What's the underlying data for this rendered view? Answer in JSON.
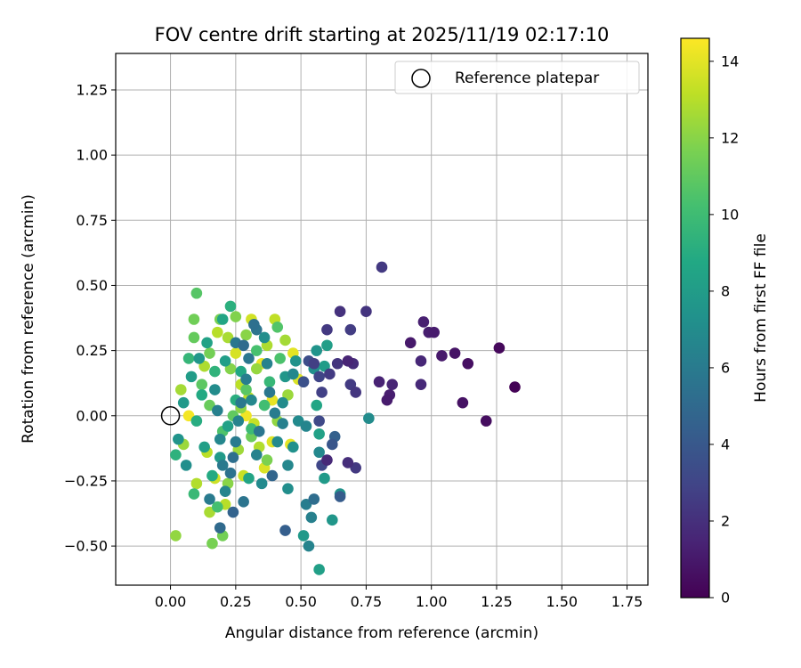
{
  "chart_data": {
    "type": "scatter",
    "title": "FOV centre drift starting at 2025/11/19 02:17:10",
    "xlabel": "Angular distance from reference (arcmin)",
    "ylabel": "Rotation from reference (arcmin)",
    "xlim": [
      -0.21,
      1.83
    ],
    "ylim": [
      -0.65,
      1.39
    ],
    "xticks": [
      0.0,
      0.25,
      0.5,
      0.75,
      1.0,
      1.25,
      1.5,
      1.75
    ],
    "xtick_labels": [
      "0.00",
      "0.25",
      "0.50",
      "0.75",
      "1.00",
      "1.25",
      "1.50",
      "1.75"
    ],
    "yticks": [
      -0.5,
      -0.25,
      0.0,
      0.25,
      0.5,
      0.75,
      1.0,
      1.25
    ],
    "ytick_labels": [
      "−0.50",
      "−0.25",
      "0.00",
      "0.25",
      "0.50",
      "0.75",
      "1.00",
      "1.25"
    ],
    "grid": true,
    "legend": {
      "label": "Reference platepar",
      "placement": "top-right"
    },
    "reference_point": {
      "x": 0.0,
      "y": 0.0
    },
    "colorbar": {
      "label": "Hours from first FF file",
      "range": [
        0,
        14.6
      ],
      "ticks": [
        0,
        2,
        4,
        6,
        8,
        10,
        12,
        14
      ],
      "tick_labels": [
        "0",
        "2",
        "4",
        "6",
        "8",
        "10",
        "12",
        "14"
      ],
      "colormap": "viridis"
    },
    "points": [
      {
        "x": 1.32,
        "y": 0.11,
        "t": 0.1
      },
      {
        "x": 1.26,
        "y": 0.26,
        "t": 0.3
      },
      {
        "x": 1.21,
        "y": -0.02,
        "t": 0.5
      },
      {
        "x": 1.14,
        "y": 0.2,
        "t": 0.6
      },
      {
        "x": 1.12,
        "y": 0.05,
        "t": 0.7
      },
      {
        "x": 1.09,
        "y": 0.24,
        "t": 0.8
      },
      {
        "x": 1.04,
        "y": 0.23,
        "t": 1.0
      },
      {
        "x": 1.01,
        "y": 0.32,
        "t": 1.1
      },
      {
        "x": 0.99,
        "y": 0.32,
        "t": 1.2
      },
      {
        "x": 0.97,
        "y": 0.36,
        "t": 1.3
      },
      {
        "x": 0.92,
        "y": 0.28,
        "t": 1.0
      },
      {
        "x": 0.96,
        "y": 0.21,
        "t": 1.6
      },
      {
        "x": 0.96,
        "y": 0.12,
        "t": 1.7
      },
      {
        "x": 0.84,
        "y": 0.08,
        "t": 1.2
      },
      {
        "x": 0.83,
        "y": 0.06,
        "t": 1.1
      },
      {
        "x": 0.85,
        "y": 0.12,
        "t": 1.5
      },
      {
        "x": 0.81,
        "y": 0.57,
        "t": 2.4
      },
      {
        "x": 0.8,
        "y": 0.13,
        "t": 1.4
      },
      {
        "x": 0.75,
        "y": 0.4,
        "t": 2.2
      },
      {
        "x": 0.71,
        "y": -0.2,
        "t": 2.4
      },
      {
        "x": 0.71,
        "y": 0.09,
        "t": 2.3
      },
      {
        "x": 0.7,
        "y": 0.2,
        "t": 1.8
      },
      {
        "x": 0.69,
        "y": 0.12,
        "t": 2.5
      },
      {
        "x": 0.68,
        "y": -0.18,
        "t": 1.9
      },
      {
        "x": 0.69,
        "y": 0.33,
        "t": 2.6
      },
      {
        "x": 0.68,
        "y": 0.21,
        "t": 1.5
      },
      {
        "x": 0.65,
        "y": 0.4,
        "t": 2.1
      },
      {
        "x": 0.64,
        "y": 0.2,
        "t": 2.2
      },
      {
        "x": 0.61,
        "y": 0.16,
        "t": 2.5
      },
      {
        "x": 0.6,
        "y": 0.33,
        "t": 2.4
      },
      {
        "x": 0.6,
        "y": -0.17,
        "t": 1.7
      },
      {
        "x": 0.58,
        "y": 0.09,
        "t": 2.8
      },
      {
        "x": 0.57,
        "y": 0.15,
        "t": 3.0
      },
      {
        "x": 0.58,
        "y": -0.19,
        "t": 3.1
      },
      {
        "x": 0.57,
        "y": -0.02,
        "t": 3.2
      },
      {
        "x": 0.55,
        "y": 0.2,
        "t": 2.7
      },
      {
        "x": 0.53,
        "y": 0.21,
        "t": 3.4
      },
      {
        "x": 0.62,
        "y": -0.11,
        "t": 3.9
      },
      {
        "x": 0.63,
        "y": -0.08,
        "t": 4.5
      },
      {
        "x": 0.51,
        "y": 0.13,
        "t": 3.6
      },
      {
        "x": 0.65,
        "y": -0.31,
        "t": 4.2
      },
      {
        "x": 0.55,
        "y": -0.32,
        "t": 5.2
      },
      {
        "x": 0.44,
        "y": -0.44,
        "t": 4.4
      },
      {
        "x": 0.24,
        "y": -0.37,
        "t": 4.6
      },
      {
        "x": 0.19,
        "y": -0.43,
        "t": 5.0
      },
      {
        "x": 0.52,
        "y": -0.34,
        "t": 6.1
      },
      {
        "x": 0.54,
        "y": -0.39,
        "t": 6.3
      },
      {
        "x": 0.53,
        "y": -0.5,
        "t": 6.5
      },
      {
        "x": 0.51,
        "y": -0.46,
        "t": 7.8
      },
      {
        "x": 0.57,
        "y": -0.59,
        "t": 8.2
      },
      {
        "x": 0.62,
        "y": -0.4,
        "t": 7.6
      },
      {
        "x": 0.65,
        "y": -0.3,
        "t": 7.4
      },
      {
        "x": 0.59,
        "y": -0.24,
        "t": 7.9
      },
      {
        "x": 0.57,
        "y": -0.14,
        "t": 6.8
      },
      {
        "x": 0.57,
        "y": -0.07,
        "t": 8.3
      },
      {
        "x": 0.59,
        "y": 0.19,
        "t": 8.0
      },
      {
        "x": 0.6,
        "y": 0.27,
        "t": 8.1
      },
      {
        "x": 0.56,
        "y": 0.25,
        "t": 7.5
      },
      {
        "x": 0.55,
        "y": 0.18,
        "t": 7.2
      },
      {
        "x": 0.56,
        "y": 0.04,
        "t": 8.6
      },
      {
        "x": 0.52,
        "y": -0.04,
        "t": 6.6
      },
      {
        "x": 0.49,
        "y": -0.02,
        "t": 6.9
      },
      {
        "x": 0.47,
        "y": -0.12,
        "t": 7.3
      },
      {
        "x": 0.45,
        "y": -0.19,
        "t": 6.7
      },
      {
        "x": 0.45,
        "y": -0.28,
        "t": 7.1
      },
      {
        "x": 0.39,
        "y": -0.23,
        "t": 4.8
      },
      {
        "x": 0.76,
        "y": -0.01,
        "t": 7.0
      },
      {
        "x": 0.48,
        "y": 0.21,
        "t": 7.4
      },
      {
        "x": 0.47,
        "y": 0.16,
        "t": 6.8
      },
      {
        "x": 0.44,
        "y": 0.15,
        "t": 7.6
      },
      {
        "x": 0.43,
        "y": 0.05,
        "t": 7.0
      },
      {
        "x": 0.43,
        "y": -0.03,
        "t": 6.3
      },
      {
        "x": 0.41,
        "y": -0.1,
        "t": 6.9
      },
      {
        "x": 0.4,
        "y": 0.01,
        "t": 6.1
      },
      {
        "x": 0.38,
        "y": 0.09,
        "t": 5.8
      },
      {
        "x": 0.37,
        "y": 0.2,
        "t": 6.4
      },
      {
        "x": 0.36,
        "y": 0.3,
        "t": 7.1
      },
      {
        "x": 0.33,
        "y": 0.33,
        "t": 5.6
      },
      {
        "x": 0.32,
        "y": 0.35,
        "t": 5.4
      },
      {
        "x": 0.3,
        "y": 0.22,
        "t": 5.7
      },
      {
        "x": 0.29,
        "y": 0.14,
        "t": 6.2
      },
      {
        "x": 0.27,
        "y": 0.05,
        "t": 5.9
      },
      {
        "x": 0.26,
        "y": -0.02,
        "t": 6.5
      },
      {
        "x": 0.25,
        "y": -0.1,
        "t": 6.0
      },
      {
        "x": 0.24,
        "y": -0.16,
        "t": 5.3
      },
      {
        "x": 0.23,
        "y": -0.22,
        "t": 5.5
      },
      {
        "x": 0.21,
        "y": -0.29,
        "t": 6.6
      },
      {
        "x": 0.2,
        "y": -0.19,
        "t": 5.9
      },
      {
        "x": 0.19,
        "y": -0.09,
        "t": 6.7
      },
      {
        "x": 0.18,
        "y": 0.02,
        "t": 6.3
      },
      {
        "x": 0.17,
        "y": 0.1,
        "t": 7.0
      },
      {
        "x": 0.28,
        "y": 0.27,
        "t": 5.1
      },
      {
        "x": 0.25,
        "y": 0.28,
        "t": 5.8
      },
      {
        "x": 0.31,
        "y": 0.06,
        "t": 6.8
      },
      {
        "x": 0.34,
        "y": -0.06,
        "t": 5.7
      },
      {
        "x": 0.33,
        "y": -0.15,
        "t": 6.4
      },
      {
        "x": 0.35,
        "y": -0.26,
        "t": 6.9
      },
      {
        "x": 0.28,
        "y": -0.33,
        "t": 5.6
      },
      {
        "x": 0.15,
        "y": -0.32,
        "t": 6.0
      },
      {
        "x": 0.06,
        "y": -0.19,
        "t": 7.2
      },
      {
        "x": 0.03,
        "y": -0.09,
        "t": 7.5
      },
      {
        "x": 0.05,
        "y": 0.05,
        "t": 7.8
      },
      {
        "x": 0.08,
        "y": 0.15,
        "t": 8.0
      },
      {
        "x": 0.11,
        "y": 0.22,
        "t": 7.7
      },
      {
        "x": 0.14,
        "y": 0.28,
        "t": 8.4
      },
      {
        "x": 0.2,
        "y": 0.37,
        "t": 8.6
      },
      {
        "x": 0.23,
        "y": 0.42,
        "t": 9.2
      },
      {
        "x": 0.12,
        "y": 0.08,
        "t": 8.8
      },
      {
        "x": 0.1,
        "y": -0.02,
        "t": 9.0
      },
      {
        "x": 0.13,
        "y": -0.12,
        "t": 8.2
      },
      {
        "x": 0.16,
        "y": -0.23,
        "t": 8.9
      },
      {
        "x": 0.19,
        "y": -0.16,
        "t": 7.9
      },
      {
        "x": 0.22,
        "y": -0.04,
        "t": 8.3
      },
      {
        "x": 0.25,
        "y": 0.06,
        "t": 9.1
      },
      {
        "x": 0.27,
        "y": 0.17,
        "t": 8.7
      },
      {
        "x": 0.3,
        "y": -0.24,
        "t": 8.5
      },
      {
        "x": 0.21,
        "y": 0.21,
        "t": 8.1
      },
      {
        "x": 0.17,
        "y": 0.17,
        "t": 9.4
      },
      {
        "x": 0.07,
        "y": 0.22,
        "t": 9.6
      },
      {
        "x": 0.02,
        "y": -0.15,
        "t": 9.3
      },
      {
        "x": 0.09,
        "y": -0.3,
        "t": 9.8
      },
      {
        "x": 0.18,
        "y": -0.35,
        "t": 10.2
      },
      {
        "x": 0.31,
        "y": -0.05,
        "t": 9.9
      },
      {
        "x": 0.36,
        "y": 0.04,
        "t": 10.1
      },
      {
        "x": 0.38,
        "y": 0.13,
        "t": 9.7
      },
      {
        "x": 0.42,
        "y": 0.22,
        "t": 10.4
      },
      {
        "x": 0.41,
        "y": 0.34,
        "t": 10.6
      },
      {
        "x": 0.33,
        "y": 0.25,
        "t": 10.3
      },
      {
        "x": 0.29,
        "y": 0.1,
        "t": 10.8
      },
      {
        "x": 0.24,
        "y": 0.0,
        "t": 11.0
      },
      {
        "x": 0.2,
        "y": -0.06,
        "t": 10.5
      },
      {
        "x": 0.15,
        "y": 0.04,
        "t": 11.2
      },
      {
        "x": 0.12,
        "y": 0.12,
        "t": 10.9
      },
      {
        "x": 0.09,
        "y": 0.3,
        "t": 11.1
      },
      {
        "x": 0.1,
        "y": 0.47,
        "t": 10.7
      },
      {
        "x": 0.09,
        "y": 0.37,
        "t": 11.4
      },
      {
        "x": 0.15,
        "y": 0.24,
        "t": 11.5
      },
      {
        "x": 0.19,
        "y": 0.37,
        "t": 11.6
      },
      {
        "x": 0.25,
        "y": 0.38,
        "t": 11.8
      },
      {
        "x": 0.29,
        "y": 0.31,
        "t": 12.0
      },
      {
        "x": 0.23,
        "y": 0.18,
        "t": 11.9
      },
      {
        "x": 0.27,
        "y": 0.03,
        "t": 12.1
      },
      {
        "x": 0.31,
        "y": -0.08,
        "t": 11.3
      },
      {
        "x": 0.37,
        "y": -0.17,
        "t": 11.7
      },
      {
        "x": 0.41,
        "y": -0.02,
        "t": 12.2
      },
      {
        "x": 0.45,
        "y": 0.08,
        "t": 12.4
      },
      {
        "x": 0.44,
        "y": 0.29,
        "t": 12.6
      },
      {
        "x": 0.37,
        "y": 0.27,
        "t": 12.8
      },
      {
        "x": 0.33,
        "y": 0.18,
        "t": 12.3
      },
      {
        "x": 0.26,
        "y": -0.13,
        "t": 12.5
      },
      {
        "x": 0.22,
        "y": -0.26,
        "t": 12.0
      },
      {
        "x": 0.2,
        "y": -0.46,
        "t": 11.5
      },
      {
        "x": 0.16,
        "y": -0.49,
        "t": 11.6
      },
      {
        "x": 0.15,
        "y": -0.37,
        "t": 12.7
      },
      {
        "x": 0.1,
        "y": -0.26,
        "t": 12.9
      },
      {
        "x": 0.05,
        "y": -0.11,
        "t": 12.4
      },
      {
        "x": 0.02,
        "y": -0.46,
        "t": 12.2
      },
      {
        "x": 0.04,
        "y": 0.1,
        "t": 12.6
      },
      {
        "x": 0.13,
        "y": 0.19,
        "t": 12.8
      },
      {
        "x": 0.18,
        "y": 0.32,
        "t": 13.0
      },
      {
        "x": 0.22,
        "y": 0.3,
        "t": 12.7
      },
      {
        "x": 0.27,
        "y": 0.12,
        "t": 13.1
      },
      {
        "x": 0.3,
        "y": 0.07,
        "t": 13.2
      },
      {
        "x": 0.32,
        "y": -0.03,
        "t": 13.3
      },
      {
        "x": 0.34,
        "y": -0.12,
        "t": 12.9
      },
      {
        "x": 0.28,
        "y": -0.23,
        "t": 13.4
      },
      {
        "x": 0.21,
        "y": -0.34,
        "t": 13.0
      },
      {
        "x": 0.17,
        "y": -0.24,
        "t": 13.5
      },
      {
        "x": 0.14,
        "y": -0.14,
        "t": 13.1
      },
      {
        "x": 0.31,
        "y": 0.37,
        "t": 13.6
      },
      {
        "x": 0.4,
        "y": 0.37,
        "t": 13.2
      },
      {
        "x": 0.49,
        "y": 0.14,
        "t": 13.8
      },
      {
        "x": 0.47,
        "y": 0.24,
        "t": 14.0
      },
      {
        "x": 0.39,
        "y": 0.06,
        "t": 14.1
      },
      {
        "x": 0.35,
        "y": 0.2,
        "t": 14.2
      },
      {
        "x": 0.29,
        "y": 0.0,
        "t": 14.3
      },
      {
        "x": 0.39,
        "y": -0.1,
        "t": 13.9
      },
      {
        "x": 0.46,
        "y": -0.11,
        "t": 14.0
      },
      {
        "x": 0.07,
        "y": 0.0,
        "t": 14.4
      },
      {
        "x": 0.25,
        "y": 0.24,
        "t": 13.7
      },
      {
        "x": 0.36,
        "y": -0.2,
        "t": 13.8
      }
    ]
  }
}
